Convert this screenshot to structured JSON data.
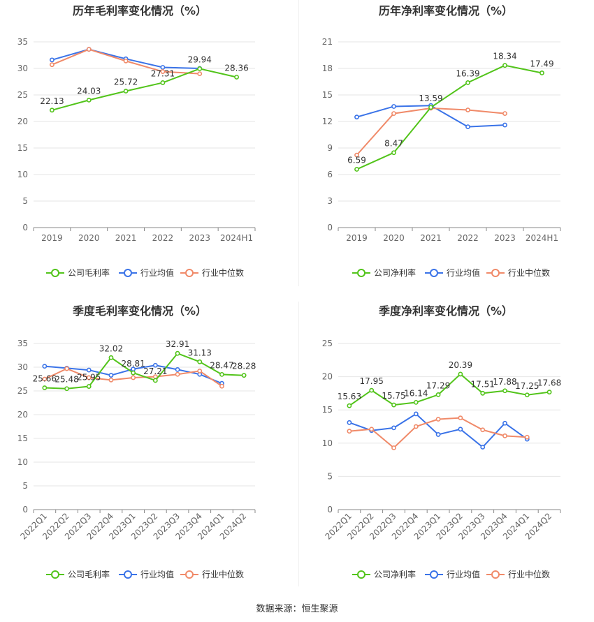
{
  "source": "数据来源：恒生聚源",
  "colors": {
    "company": "#52c41a",
    "industry_avg": "#3a73e8",
    "industry_median": "#f08a69"
  },
  "chart_data": [
    {
      "type": "line",
      "title": "历年毛利率变化情况（%）",
      "categories": [
        "2019",
        "2020",
        "2021",
        "2022",
        "2023",
        "2024H1"
      ],
      "ylim": [
        0,
        35
      ],
      "yticks": [
        0,
        5,
        10,
        15,
        20,
        25,
        30,
        35
      ],
      "series": [
        {
          "name": "公司毛利率",
          "values": [
            22.13,
            24.03,
            25.72,
            27.31,
            29.94,
            28.36
          ],
          "labels": [
            "22.13",
            "24.03",
            "25.72",
            "27.31",
            "29.94",
            "28.36"
          ]
        },
        {
          "name": "行业均值",
          "values": [
            31.6,
            33.6,
            31.8,
            30.2,
            30.0,
            null
          ]
        },
        {
          "name": "行业中位数",
          "values": [
            30.7,
            33.6,
            31.4,
            29.4,
            29.0,
            null
          ]
        }
      ],
      "legend": [
        "公司毛利率",
        "行业均值",
        "行业中位数"
      ]
    },
    {
      "type": "line",
      "title": "历年净利率变化情况（%）",
      "categories": [
        "2019",
        "2020",
        "2021",
        "2022",
        "2023",
        "2024H1"
      ],
      "ylim": [
        0,
        21
      ],
      "yticks": [
        0,
        3,
        6,
        9,
        12,
        15,
        18,
        21
      ],
      "series": [
        {
          "name": "公司净利率",
          "values": [
            6.59,
            8.47,
            13.59,
            16.39,
            18.34,
            17.49
          ],
          "labels": [
            "6.59",
            "8.47",
            "13.59",
            "16.39",
            "18.34",
            "17.49"
          ]
        },
        {
          "name": "行业均值",
          "values": [
            12.5,
            13.7,
            13.8,
            11.4,
            11.6,
            null
          ]
        },
        {
          "name": "行业中位数",
          "values": [
            8.2,
            12.9,
            13.5,
            13.3,
            12.9,
            null
          ]
        }
      ],
      "legend": [
        "公司净利率",
        "行业均值",
        "行业中位数"
      ]
    },
    {
      "type": "line",
      "title": "季度毛利率变化情况（%）",
      "categories": [
        "2022Q1",
        "2022Q2",
        "2022Q3",
        "2022Q4",
        "2023Q1",
        "2023Q2",
        "2023Q3",
        "2023Q4",
        "2024Q1",
        "2024Q2"
      ],
      "ylim": [
        0,
        35
      ],
      "yticks": [
        0,
        5,
        10,
        15,
        20,
        25,
        30,
        35
      ],
      "rotate_x": true,
      "series": [
        {
          "name": "公司毛利率",
          "values": [
            25.66,
            25.48,
            25.95,
            32.02,
            28.81,
            27.21,
            32.91,
            31.13,
            28.47,
            28.28
          ],
          "labels": [
            "25.66",
            "25.48",
            "25.95",
            "32.02",
            "28.81",
            "27.21",
            "32.91",
            "31.13",
            "28.47",
            "28.28"
          ]
        },
        {
          "name": "行业均值",
          "values": [
            30.2,
            29.8,
            29.4,
            28.3,
            29.6,
            30.4,
            29.5,
            28.5,
            26.6,
            null
          ]
        },
        {
          "name": "行业中位数",
          "values": [
            27.5,
            29.7,
            27.8,
            27.3,
            27.8,
            28.0,
            28.5,
            29.2,
            26.0,
            null
          ]
        }
      ],
      "legend": [
        "公司毛利率",
        "行业均值",
        "行业中位数"
      ]
    },
    {
      "type": "line",
      "title": "季度净利率变化情况（%）",
      "categories": [
        "2022Q1",
        "2022Q2",
        "2022Q3",
        "2022Q4",
        "2023Q1",
        "2023Q2",
        "2023Q3",
        "2023Q4",
        "2024Q1",
        "2024Q2"
      ],
      "ylim": [
        0,
        25
      ],
      "yticks": [
        0,
        5,
        10,
        15,
        20,
        25
      ],
      "rotate_x": true,
      "series": [
        {
          "name": "公司净利率",
          "values": [
            15.63,
            17.95,
            15.75,
            16.14,
            17.29,
            20.39,
            17.51,
            17.88,
            17.25,
            17.68
          ],
          "labels": [
            "15.63",
            "17.95",
            "15.75",
            "16.14",
            "17.29",
            "20.39",
            "17.51",
            "17.88",
            "17.25",
            "17.68"
          ]
        },
        {
          "name": "行业均值",
          "values": [
            13.1,
            11.9,
            12.3,
            14.4,
            11.3,
            12.1,
            9.4,
            13.0,
            10.6,
            null
          ]
        },
        {
          "name": "行业中位数",
          "values": [
            11.8,
            12.1,
            9.3,
            12.5,
            13.6,
            13.8,
            12.0,
            11.1,
            10.9,
            null
          ]
        }
      ],
      "legend": [
        "公司净利率",
        "行业均值",
        "行业中位数"
      ]
    }
  ]
}
